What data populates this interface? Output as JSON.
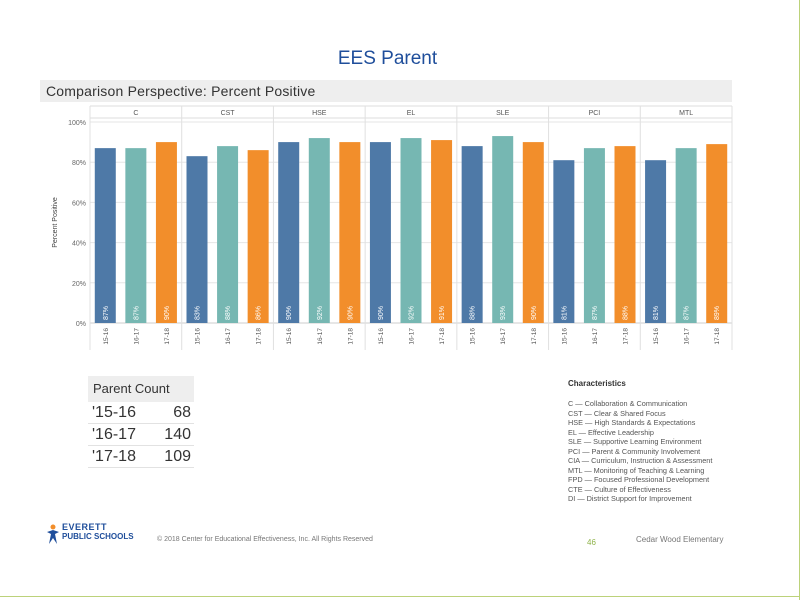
{
  "page": {
    "title": "EES Parent",
    "chart_header": "Comparison Perspective: Percent Positive"
  },
  "chart_data": {
    "type": "bar",
    "title": "Comparison Perspective: Percent Positive",
    "ylabel": "Percent Positive",
    "ylim": [
      0,
      100
    ],
    "yticks": [
      "0%",
      "20%",
      "40%",
      "60%",
      "80%",
      "100%"
    ],
    "groups": [
      {
        "name": "C",
        "values": [
          87,
          87,
          90
        ],
        "labels": [
          "87%",
          "87%",
          "90%"
        ]
      },
      {
        "name": "CST",
        "values": [
          83,
          88,
          86
        ],
        "labels": [
          "83%",
          "88%",
          "86%"
        ]
      },
      {
        "name": "HSE",
        "values": [
          90,
          92,
          90
        ],
        "labels": [
          "90%",
          "92%",
          "90%"
        ]
      },
      {
        "name": "EL",
        "values": [
          90,
          92,
          91
        ],
        "labels": [
          "90%",
          "92%",
          "91%"
        ]
      },
      {
        "name": "SLE",
        "values": [
          88,
          93,
          90
        ],
        "labels": [
          "88%",
          "93%",
          "90%"
        ]
      },
      {
        "name": "PCI",
        "values": [
          81,
          87,
          88
        ],
        "labels": [
          "81%",
          "87%",
          "88%"
        ]
      },
      {
        "name": "MTL",
        "values": [
          81,
          87,
          89
        ],
        "labels": [
          "81%",
          "87%",
          "89%"
        ]
      }
    ],
    "x_categories": [
      "15-16",
      "16-17",
      "17-18"
    ],
    "series_colors": [
      "#4e79a7",
      "#76b7b2",
      "#f28e2b"
    ],
    "grid": true
  },
  "parent_count": {
    "title": "Parent Count",
    "rows": [
      {
        "year": "'15-16",
        "count": "68"
      },
      {
        "year": "'16-17",
        "count": "140"
      },
      {
        "year": "'17-18",
        "count": "109"
      }
    ]
  },
  "characteristics": {
    "title": "Characteristics",
    "items": [
      "C — Collaboration & Communication",
      "CST — Clear & Shared Focus",
      "HSE — High Standards & Expectations",
      "EL — Effective Leadership",
      "SLE — Supportive Learning Environment",
      "PCI — Parent & Community Involvement",
      "CIA — Curriculum, Instruction & Assessment",
      "MTL — Monitoring of Teaching & Learning",
      "FPD — Focused Professional Development",
      "CTE — Culture of Effectiveness",
      "DI — District Support for Improvement"
    ]
  },
  "footer": {
    "logo_top": "EVERETT",
    "logo_bottom": "PUBLIC SCHOOLS",
    "copyright": "© 2018 Center for Educational Effectiveness, Inc. All Rights Reserved",
    "page_number": "46",
    "school": "Cedar Wood Elementary"
  }
}
